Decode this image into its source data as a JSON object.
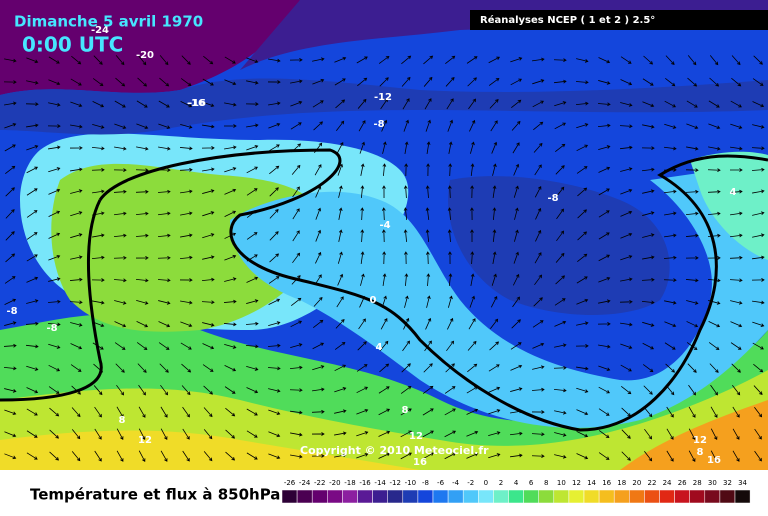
{
  "header": {
    "date": "Dimanche 5 avril 1970",
    "time": "0:00 UTC",
    "source": "Réanalyses NCEP ( 1 et 2 ) 2.5°"
  },
  "copyright": "Copyright © 2010 Meteociel.fr",
  "legend": {
    "title": "Température et flux à 850hPa",
    "labels": [
      -26,
      -24,
      -22,
      -20,
      -18,
      -16,
      -14,
      -12,
      -10,
      -8,
      -6,
      -4,
      -2,
      0,
      2,
      4,
      6,
      8,
      10,
      12,
      14,
      16,
      18,
      20,
      22,
      24,
      26,
      28,
      30,
      32,
      34
    ],
    "colors": [
      "#2d0036",
      "#4b0052",
      "#64006e",
      "#7a0a85",
      "#8c1fa0",
      "#5a1a96",
      "#3c1e91",
      "#28288c",
      "#1e3cb4",
      "#1446dc",
      "#1e78f0",
      "#32a0f5",
      "#50c8fa",
      "#78e6fa",
      "#6ef0c8",
      "#3ce68c",
      "#50dc5a",
      "#8cdc3c",
      "#bee632",
      "#e6f032",
      "#f0dc28",
      "#f5be1e",
      "#f5a01e",
      "#f07814",
      "#eb5014",
      "#e12814",
      "#c8141e",
      "#a00a1e",
      "#780a1e",
      "#500a14",
      "#140a0a"
    ]
  },
  "contour_labels": [
    -24,
    -20,
    -16,
    -12,
    -8,
    -8,
    -8,
    -8,
    -4,
    0,
    4,
    4,
    8,
    8,
    8,
    12,
    12,
    12,
    16,
    16,
    -16
  ]
}
